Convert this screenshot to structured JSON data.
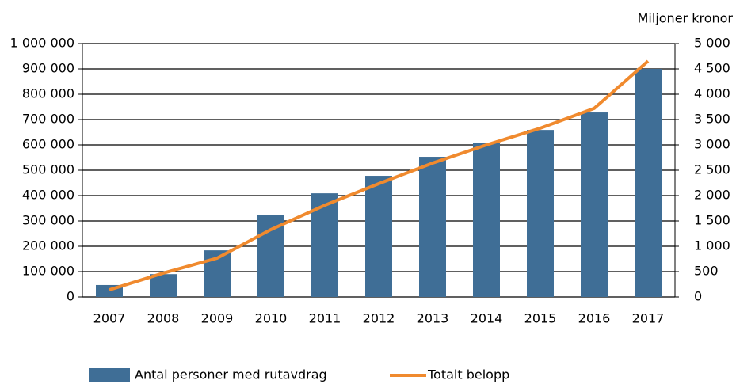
{
  "chart_data": {
    "type": "bar_line",
    "y2_label": "Miljoner kronor",
    "categories": [
      "2007",
      "2008",
      "2009",
      "2010",
      "2011",
      "2012",
      "2013",
      "2014",
      "2015",
      "2016",
      "2017"
    ],
    "series": [
      {
        "name": "Antal personer med rutavdrag",
        "color": "#3f6e96",
        "type": "bar",
        "values": [
          47000,
          90000,
          184000,
          322000,
          409000,
          478000,
          553000,
          609000,
          659000,
          728000,
          900000
        ]
      },
      {
        "name": "Totalt belopp",
        "color": "#f08a2e",
        "type": "line",
        "axis": "y2",
        "values": [
          140,
          470,
          765,
          1330,
          1810,
          2235,
          2640,
          3000,
          3330,
          3720,
          4655
        ]
      }
    ],
    "ylim": [
      0,
      1000000
    ],
    "yticks": [
      0,
      {
        "value": 100000,
        "label": "100 000"
      },
      {
        "value": 200000,
        "label": "200 000"
      },
      {
        "value": 300000,
        "label": "300 000"
      },
      {
        "value": 400000,
        "label": "400 000"
      },
      {
        "value": 500000,
        "label": "500 000"
      },
      {
        "value": 600000,
        "label": "600 000"
      },
      {
        "value": 700000,
        "label": "700 000"
      },
      {
        "value": 800000,
        "label": "800 000"
      },
      {
        "value": 900000,
        "label": "900 000"
      },
      {
        "value": 1000000,
        "label": "1 000 000"
      }
    ],
    "y2lim": [
      0,
      5000
    ],
    "y2ticks": [
      0,
      500,
      {
        "value": 1000,
        "label": "1 000"
      },
      {
        "value": 1500,
        "label": "1 500"
      },
      {
        "value": 2000,
        "label": "2 000"
      },
      {
        "value": 2500,
        "label": "2 500"
      },
      {
        "value": 3000,
        "label": "3 000"
      },
      {
        "value": 3500,
        "label": "3 500"
      },
      {
        "value": 4000,
        "label": "4 000"
      },
      {
        "value": 4500,
        "label": "4 500"
      },
      {
        "value": 5000,
        "label": "5 000"
      }
    ],
    "grid": true
  }
}
